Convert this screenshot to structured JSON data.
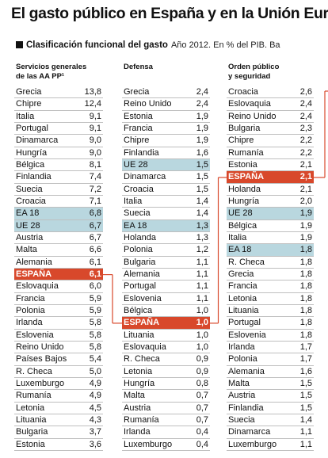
{
  "title": "El gasto público en España y en la Unión Euro",
  "subtitle": {
    "bold": "Clasificación funcional del gasto",
    "note": "Año 2012. En % del PIB. Ba"
  },
  "colors": {
    "eu_highlight": "#b9d7df",
    "spain_highlight": "#d8482b",
    "connector": "#d8482b"
  },
  "columns": [
    {
      "header": "Servicios generales\nde las AA PP¹",
      "rows": [
        {
          "name": "Grecia",
          "value": "13,8"
        },
        {
          "name": "Chipre",
          "value": "12,4"
        },
        {
          "name": "Italia",
          "value": "9,1"
        },
        {
          "name": "Portugal",
          "value": "9,1"
        },
        {
          "name": "Dinamarca",
          "value": "9,0"
        },
        {
          "name": "Hungría",
          "value": "9,0"
        },
        {
          "name": "Bélgica",
          "value": "8,1"
        },
        {
          "name": "Finlandia",
          "value": "7,4"
        },
        {
          "name": "Suecia",
          "value": "7,2"
        },
        {
          "name": "Croacia",
          "value": "7,1"
        },
        {
          "name": "EA 18",
          "value": "6,8",
          "highlight": "eu"
        },
        {
          "name": "UE 28",
          "value": "6,7",
          "highlight": "eu"
        },
        {
          "name": "Austria",
          "value": "6,7"
        },
        {
          "name": "Malta",
          "value": "6,6"
        },
        {
          "name": "Alemania",
          "value": "6,1"
        },
        {
          "name": "ESPAÑA",
          "value": "6,1",
          "highlight": "es"
        },
        {
          "name": "Eslovaquia",
          "value": "6,0"
        },
        {
          "name": "Francia",
          "value": "5,9"
        },
        {
          "name": "Polonia",
          "value": "5,9"
        },
        {
          "name": "Irlanda",
          "value": "5,8"
        },
        {
          "name": "Eslovenia",
          "value": "5,8"
        },
        {
          "name": "Reino Unido",
          "value": "5,8"
        },
        {
          "name": "Países Bajos",
          "value": "5,4"
        },
        {
          "name": "R. Checa",
          "value": "5,0"
        },
        {
          "name": "Luxemburgo",
          "value": "4,9"
        },
        {
          "name": "Rumanía",
          "value": "4,9"
        },
        {
          "name": "Letonia",
          "value": "4,5"
        },
        {
          "name": "Lituania",
          "value": "4,3"
        },
        {
          "name": "Bulgaria",
          "value": "3,7"
        },
        {
          "name": "Estonia",
          "value": "3,6"
        }
      ]
    },
    {
      "header": "Defensa",
      "rows": [
        {
          "name": "Grecia",
          "value": "2,4"
        },
        {
          "name": "Reino Unido",
          "value": "2,4"
        },
        {
          "name": "Estonia",
          "value": "1,9"
        },
        {
          "name": "Francia",
          "value": "1,9"
        },
        {
          "name": "Chipre",
          "value": "1,9"
        },
        {
          "name": "Finlandia",
          "value": "1,6"
        },
        {
          "name": "UE 28",
          "value": "1,5",
          "highlight": "eu"
        },
        {
          "name": "Dinamarca",
          "value": "1,5"
        },
        {
          "name": "Croacia",
          "value": "1,5"
        },
        {
          "name": "Italia",
          "value": "1,4"
        },
        {
          "name": "Suecia",
          "value": "1,4"
        },
        {
          "name": "EA 18",
          "value": "1,3",
          "highlight": "eu"
        },
        {
          "name": "Holanda",
          "value": "1,3"
        },
        {
          "name": "Polonia",
          "value": "1,2"
        },
        {
          "name": "Bulgaria",
          "value": "1,1"
        },
        {
          "name": "Alemania",
          "value": "1,1"
        },
        {
          "name": "Portugal",
          "value": "1,1"
        },
        {
          "name": "Eslovenia",
          "value": "1,1"
        },
        {
          "name": "Bélgica",
          "value": "1,0"
        },
        {
          "name": "ESPAÑA",
          "value": "1,0",
          "highlight": "es"
        },
        {
          "name": "Lituania",
          "value": "1,0"
        },
        {
          "name": "Eslovaquia",
          "value": "1,0"
        },
        {
          "name": "R. Checa",
          "value": "0,9"
        },
        {
          "name": "Letonia",
          "value": "0,9"
        },
        {
          "name": "Hungría",
          "value": "0,8"
        },
        {
          "name": "Malta",
          "value": "0,7"
        },
        {
          "name": "Austria",
          "value": "0,7"
        },
        {
          "name": "Rumanía",
          "value": "0,7"
        },
        {
          "name": "Irlanda",
          "value": "0,4"
        },
        {
          "name": "Luxemburgo",
          "value": "0,4"
        }
      ]
    },
    {
      "header": "Orden público\ny seguridad",
      "rows": [
        {
          "name": "Croacia",
          "value": "2,6"
        },
        {
          "name": "Eslovaquia",
          "value": "2,4"
        },
        {
          "name": "Reino Unido",
          "value": "2,4"
        },
        {
          "name": "Bulgaria",
          "value": "2,3"
        },
        {
          "name": "Chipre",
          "value": "2,2"
        },
        {
          "name": "Rumanía",
          "value": "2,2"
        },
        {
          "name": "Estonia",
          "value": "2,1"
        },
        {
          "name": "ESPAÑA",
          "value": "2,1",
          "highlight": "es"
        },
        {
          "name": "Holanda",
          "value": "2,1"
        },
        {
          "name": "Hungría",
          "value": "2,0"
        },
        {
          "name": "UE 28",
          "value": "1,9",
          "highlight": "eu"
        },
        {
          "name": "Bélgica",
          "value": "1,9"
        },
        {
          "name": "Italia",
          "value": "1,9"
        },
        {
          "name": "EA 18",
          "value": "1,8",
          "highlight": "eu"
        },
        {
          "name": "R. Checa",
          "value": "1,8"
        },
        {
          "name": "Grecia",
          "value": "1,8"
        },
        {
          "name": "Francia",
          "value": "1,8"
        },
        {
          "name": "Letonia",
          "value": "1,8"
        },
        {
          "name": "Lituania",
          "value": "1,8"
        },
        {
          "name": "Portugal",
          "value": "1,8"
        },
        {
          "name": "Eslovenia",
          "value": "1,8"
        },
        {
          "name": "Irlanda",
          "value": "1,7"
        },
        {
          "name": "Polonia",
          "value": "1,7"
        },
        {
          "name": "Alemania",
          "value": "1,6"
        },
        {
          "name": "Malta",
          "value": "1,5"
        },
        {
          "name": "Austria",
          "value": "1,5"
        },
        {
          "name": "Finlandia",
          "value": "1,5"
        },
        {
          "name": "Suecia",
          "value": "1,4"
        },
        {
          "name": "Dinamarca",
          "value": "1,1"
        },
        {
          "name": "Luxemburgo",
          "value": "1,1"
        }
      ]
    }
  ]
}
